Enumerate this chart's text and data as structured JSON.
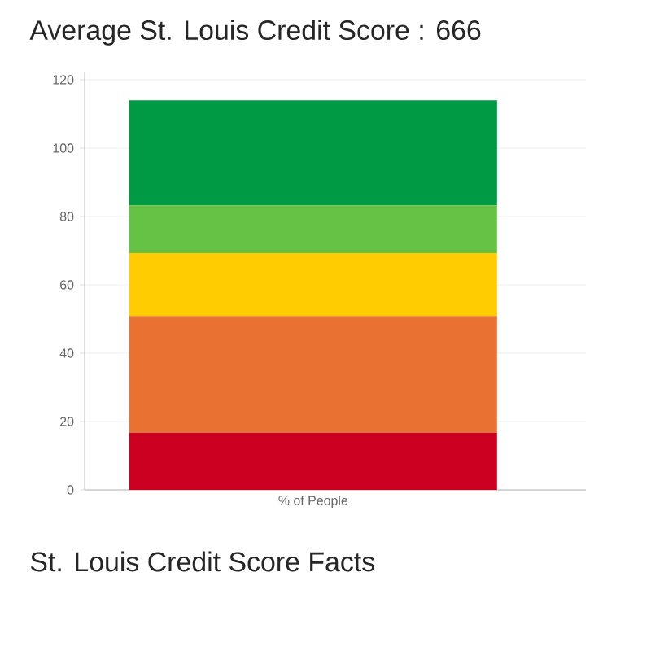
{
  "chart_data": {
    "type": "bar",
    "stacked": true,
    "title": "Average St. Louis Credit Score : 666",
    "annotations": [
      "St. Louis Credit Score Facts"
    ],
    "categories": [
      "% of People"
    ],
    "series": [
      {
        "color": "#cc0020",
        "values": [
          16.7
        ]
      },
      {
        "color": "#e97132",
        "values": [
          34.2
        ]
      },
      {
        "color": "#fecc00",
        "values": [
          18.4
        ]
      },
      {
        "color": "#66c244",
        "values": [
          14.0
        ]
      },
      {
        "color": "#009a44",
        "values": [
          30.7
        ]
      }
    ],
    "ylim": [
      0,
      120
    ],
    "yticks": [
      0,
      20,
      40,
      60,
      80,
      100,
      120
    ],
    "grid": "y"
  }
}
